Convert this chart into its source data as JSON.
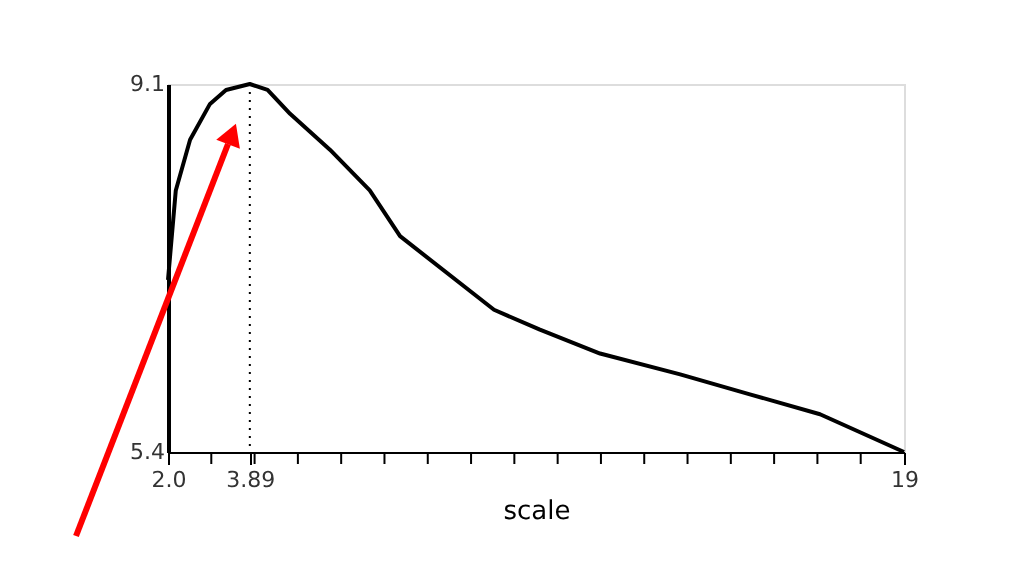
{
  "chart_data": {
    "type": "line",
    "xlabel": "scale",
    "x": [
      2.0,
      2.18,
      2.51,
      2.97,
      3.34,
      3.89,
      4.3,
      4.82,
      5.74,
      6.66,
      7.36,
      9.53,
      10.59,
      11.98,
      13.83,
      15.44,
      17.06,
      19.0
    ],
    "series": [
      {
        "color": "#000000",
        "values": [
          7.13,
          8.03,
          8.54,
          8.9,
          9.04,
          9.1,
          9.04,
          8.8,
          8.44,
          8.03,
          7.57,
          6.83,
          6.63,
          6.39,
          6.18,
          5.98,
          5.78,
          5.4
        ]
      }
    ],
    "xlim": [
      2.0,
      19.0
    ],
    "ylim": [
      5.4,
      9.1
    ],
    "xticks": [
      {
        "value": 2,
        "label": "2.0"
      },
      {
        "value": 3,
        "label": null
      },
      3.89,
      {
        "value": 4,
        "label": null
      },
      {
        "value": 5,
        "label": null
      },
      {
        "value": 6,
        "label": null
      },
      {
        "value": 7,
        "label": null
      },
      {
        "value": 8,
        "label": null
      },
      {
        "value": 9,
        "label": null
      },
      {
        "value": 10,
        "label": null
      },
      {
        "value": 11,
        "label": null
      },
      {
        "value": 12,
        "label": null
      },
      {
        "value": 13,
        "label": null
      },
      {
        "value": 14,
        "label": null
      },
      {
        "value": 15,
        "label": null
      },
      {
        "value": 16,
        "label": null
      },
      {
        "value": 17,
        "label": null
      },
      {
        "value": 18,
        "label": null
      },
      19
    ],
    "yticks": [
      5.4,
      9.1
    ],
    "ref_lines": [
      {
        "axis": "x",
        "value": 3.89,
        "line_style": "dotted",
        "color": "#000000"
      }
    ],
    "grid": false,
    "marker": "none",
    "line_style": "solid"
  }
}
